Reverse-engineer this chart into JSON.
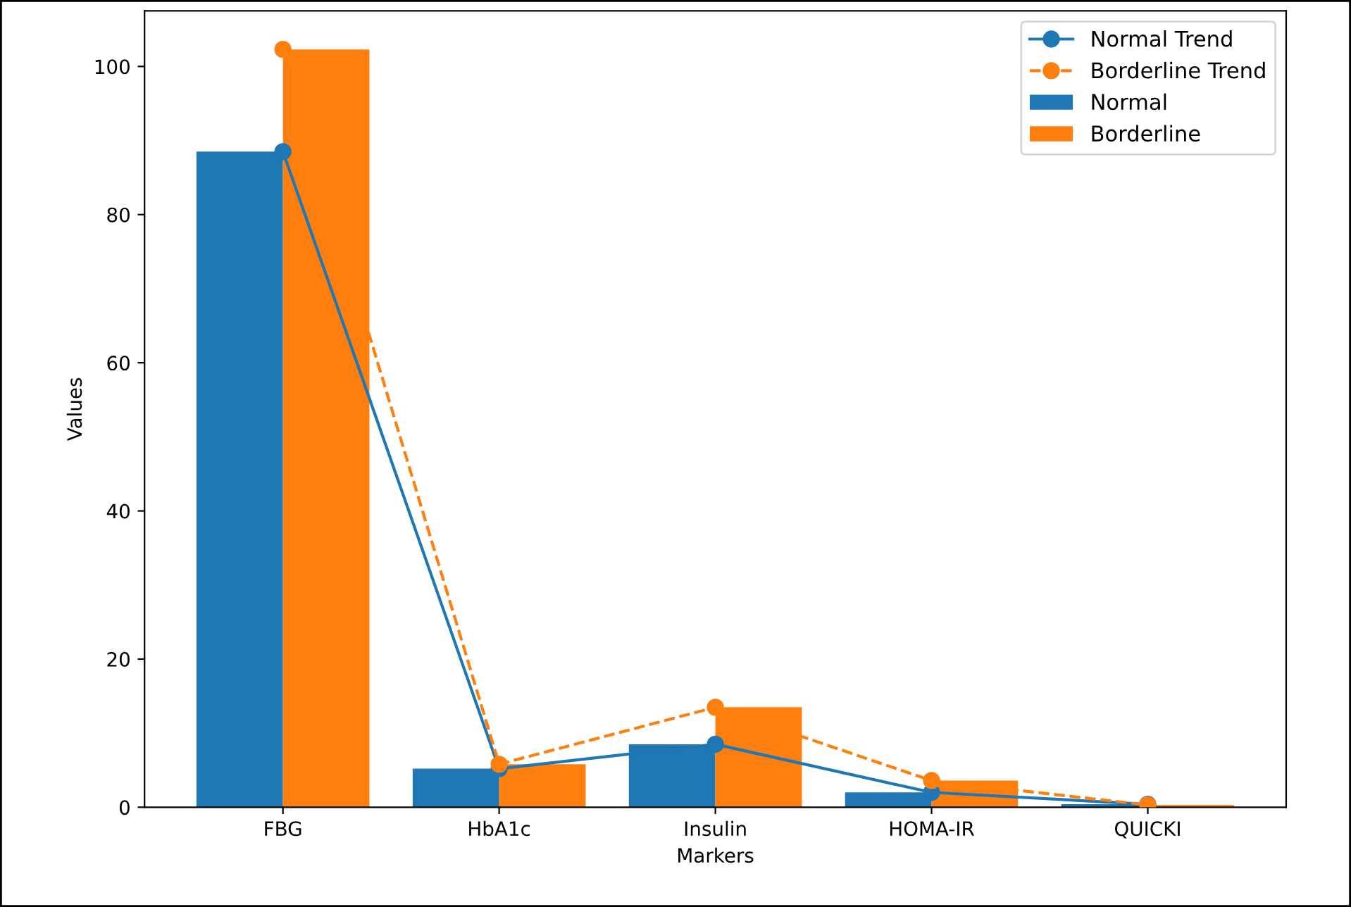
{
  "chart_data": {
    "type": "bar",
    "xlabel": "Markers",
    "ylabel": "Values",
    "categories": [
      "FBG",
      "HbA1c",
      "Insulin",
      "HOMA-IR",
      "QUICKI"
    ],
    "series": [
      {
        "name": "Normal Trend",
        "type": "line",
        "color": "#1f77b4",
        "marker": "circle",
        "line_style": "solid",
        "values": [
          88.5,
          5.2,
          8.5,
          2.0,
          0.4
        ]
      },
      {
        "name": "Borderline Trend",
        "type": "line",
        "color": "#ff7f0e",
        "marker": "circle",
        "line_style": "dashed",
        "values": [
          102.3,
          5.8,
          13.5,
          3.6,
          0.3
        ]
      },
      {
        "name": "Normal",
        "color": "#1f77b4",
        "values": [
          88.5,
          5.2,
          8.5,
          2.0,
          0.4
        ]
      },
      {
        "name": "Borderline",
        "color": "#ff7f0e",
        "values": [
          102.3,
          5.8,
          13.5,
          3.6,
          0.3
        ]
      }
    ],
    "ylim": [
      0,
      107.5
    ],
    "yticks": [
      0,
      20,
      40,
      60,
      80,
      100
    ],
    "grid": false,
    "legend": "top right"
  }
}
